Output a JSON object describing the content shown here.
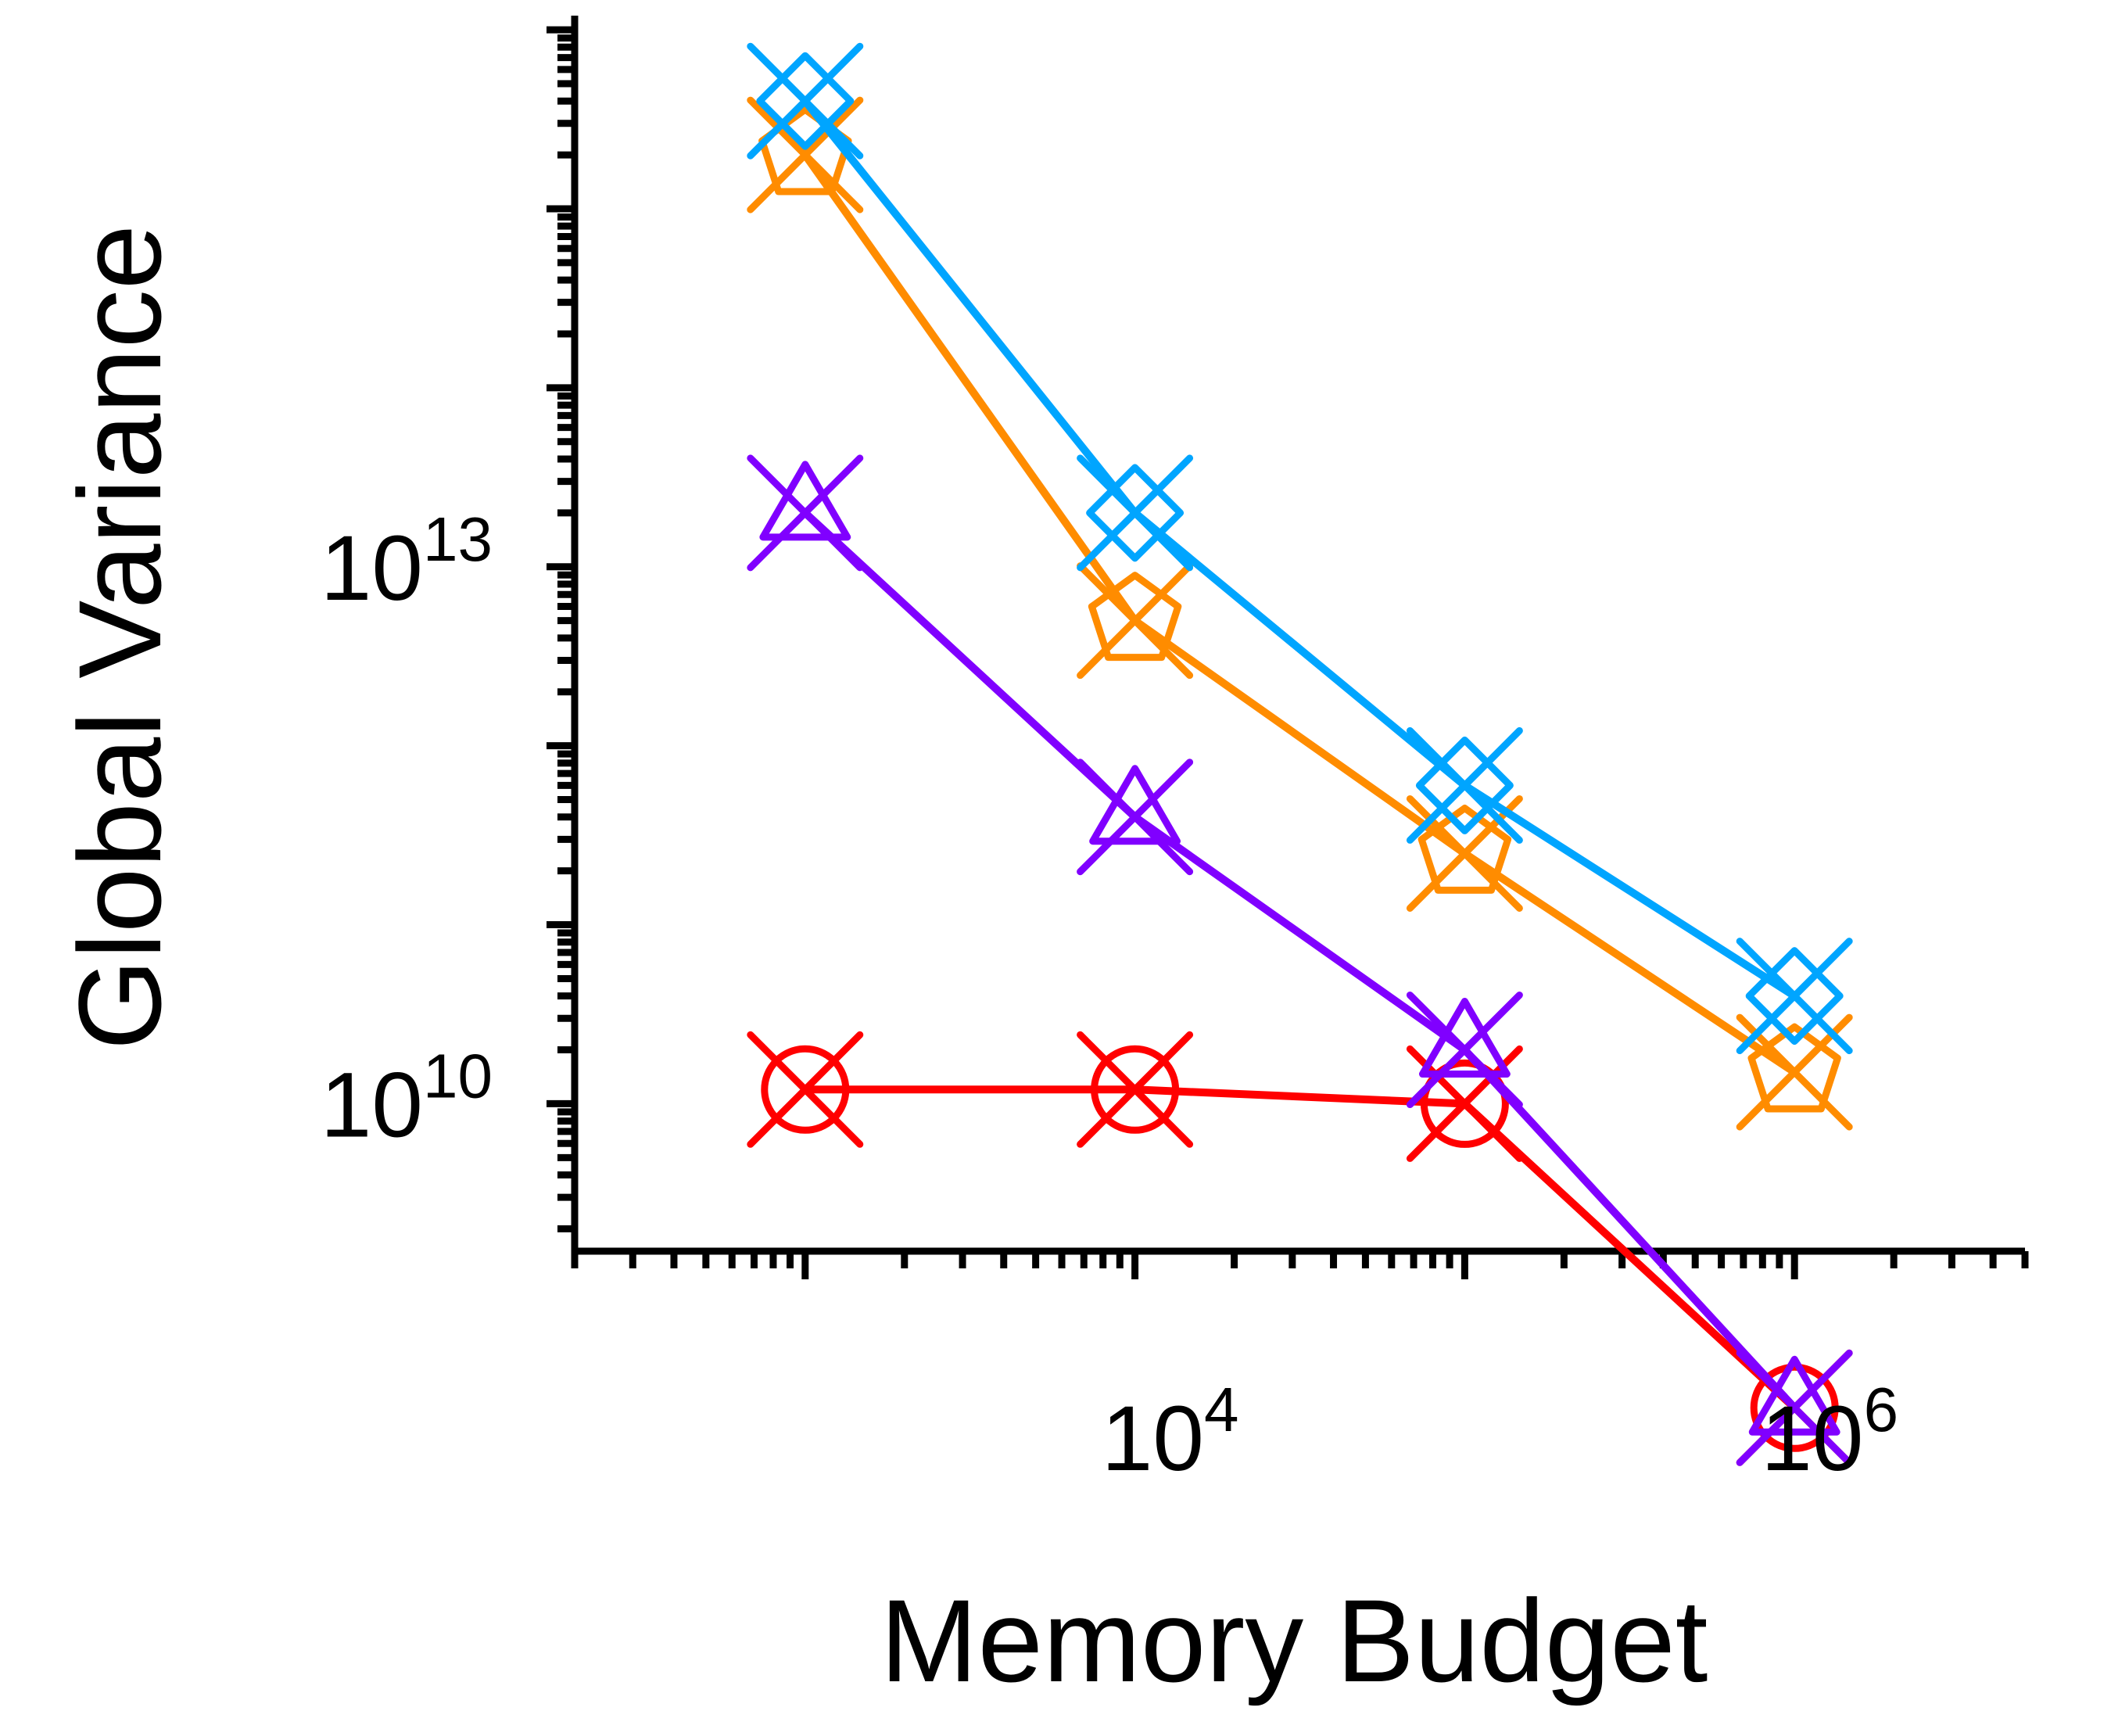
{
  "chart_data": {
    "type": "line",
    "title": "",
    "xlabel": "Memory Budget",
    "ylabel": "Global Variance",
    "xscale": "log",
    "yscale": "log",
    "xlim": [
      200,
      5000000
    ],
    "ylim": [
      1500000000,
      12000000000000000
    ],
    "x_ticks": [
      {
        "base": "10",
        "exp": "4",
        "value": 10000
      },
      {
        "base": "10",
        "exp": "6",
        "value": 1000000
      }
    ],
    "y_ticks": [
      {
        "base": "10",
        "exp": "10",
        "value": 10000000000
      },
      {
        "base": "10",
        "exp": "13",
        "value": 10000000000000
      }
    ],
    "grid": false,
    "x": [
      1000,
      10000,
      100000,
      1000000
    ],
    "series": [
      {
        "color": "#00a5ff",
        "marker": "diamond-x",
        "values": [
          4000000000000000,
          20000000000000,
          600000000000,
          40000000000
        ]
      },
      {
        "color": "#ff8c00",
        "marker": "pentagon-x",
        "values": [
          2000000000000000,
          5000000000000,
          250000000000,
          15000000000
        ]
      },
      {
        "color": "#8000ff",
        "marker": "triangle-x",
        "values": [
          20000000000000,
          400000000000,
          20000000000,
          200000000
        ]
      },
      {
        "color": "#ff0000",
        "marker": "circle-x",
        "values": [
          12000000000,
          12000000000,
          10000000000,
          200000000
        ]
      }
    ]
  }
}
